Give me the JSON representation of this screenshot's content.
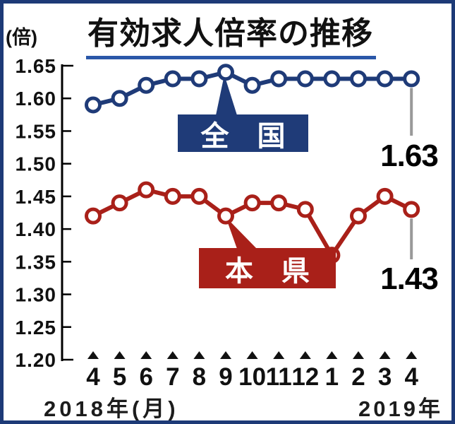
{
  "title": "有効求人倍率の推移",
  "y_axis": {
    "unit_label": "(倍)",
    "tick_values": [
      1.65,
      1.6,
      1.55,
      1.5,
      1.45,
      1.4,
      1.35,
      1.3,
      1.25,
      1.2
    ]
  },
  "x_axis": {
    "tick_labels": [
      "4",
      "5",
      "6",
      "7",
      "8",
      "9",
      "10",
      "11",
      "12",
      "1",
      "2",
      "3",
      "4"
    ],
    "left_caption": "2018年(月)",
    "right_caption": "2019年"
  },
  "callouts": {
    "national_label": "全　国",
    "prefecture_label": "本　県",
    "national_end_value": "1.63",
    "prefecture_end_value": "1.43"
  },
  "colors": {
    "national": "#1f3b78",
    "prefecture": "#a92019",
    "title_underline": "#2a57a8",
    "axis": "#000000",
    "drop_line": "#999999",
    "frame_border": "#1d3a77",
    "background": "#ffffff"
  },
  "chart_data": {
    "type": "line",
    "title": "有効求人倍率の推移",
    "ylabel": "(倍)",
    "x": [
      "2018-04",
      "2018-05",
      "2018-06",
      "2018-07",
      "2018-08",
      "2018-09",
      "2018-10",
      "2018-11",
      "2018-12",
      "2019-01",
      "2019-02",
      "2019-03",
      "2019-04"
    ],
    "series": [
      {
        "name": "全国",
        "color": "#1f3b78",
        "values": [
          1.59,
          1.6,
          1.62,
          1.63,
          1.63,
          1.64,
          1.62,
          1.63,
          1.63,
          1.63,
          1.63,
          1.63,
          1.63
        ]
      },
      {
        "name": "本県",
        "color": "#a92019",
        "values": [
          1.42,
          1.44,
          1.46,
          1.45,
          1.45,
          1.42,
          1.44,
          1.44,
          1.43,
          1.36,
          1.42,
          1.45,
          1.43
        ]
      }
    ],
    "ylim": [
      1.2,
      1.65
    ],
    "y_tick_step": 0.05,
    "grid": false,
    "marker": "open-circle",
    "legend_position": "inline-callouts",
    "end_labels": {
      "全国": 1.63,
      "本県": 1.43
    }
  }
}
